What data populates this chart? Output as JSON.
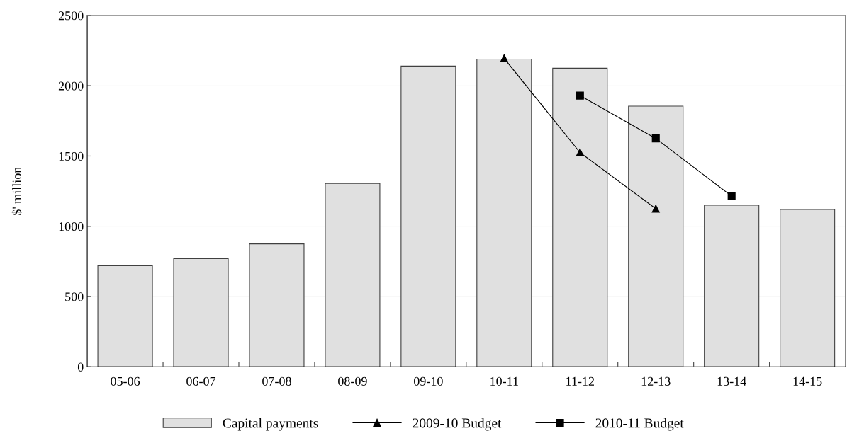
{
  "chart_data": {
    "type": "bar",
    "ylabel": "$' million",
    "categories": [
      "05-06",
      "06-07",
      "07-08",
      "08-09",
      "09-10",
      "10-11",
      "11-12",
      "12-13",
      "13-14",
      "14-15"
    ],
    "series": [
      {
        "name": "Capital payments",
        "color": "#e0e0e0",
        "values": [
          720,
          770,
          875,
          1305,
          2140,
          2190,
          2125,
          1855,
          1150,
          1120
        ]
      },
      {
        "name": "2009-10 Budget",
        "type": "line",
        "color": "#000000",
        "marker": "triangle",
        "values": [
          null,
          null,
          null,
          null,
          null,
          2195,
          1525,
          1125,
          null,
          null
        ]
      },
      {
        "name": "2010-11 Budget",
        "type": "line",
        "color": "#000000",
        "marker": "square",
        "values": [
          null,
          null,
          null,
          null,
          null,
          null,
          1930,
          1625,
          1215,
          null
        ]
      }
    ],
    "ylim": [
      0,
      2500
    ],
    "yticks": [
      0,
      500,
      1000,
      1500,
      2000,
      2500
    ],
    "grid": "y",
    "legend": "bottom"
  }
}
